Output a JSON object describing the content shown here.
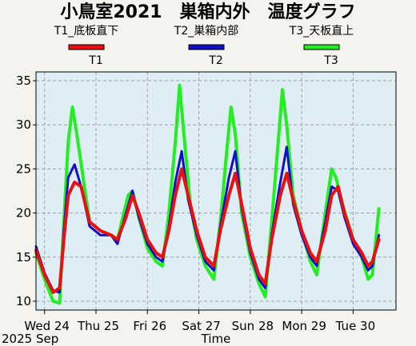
{
  "chart_data": {
    "type": "line",
    "title": "小鳥室2021　巣箱内外　温度グラフ",
    "xlabel": "Time",
    "x_origin_label": "2025 Sep",
    "ylabel": "",
    "ylim": [
      9,
      36
    ],
    "yticks": [
      10,
      15,
      20,
      25,
      30,
      35
    ],
    "grid": true,
    "legend_position": "top",
    "x_range_days": [
      "2025-09-23T20:00",
      "2025-09-30T20:00"
    ],
    "categories": [
      "Wed 24",
      "Thu 25",
      "Fri 26",
      "Sat 27",
      "Sun 28",
      "Mon 29",
      "Tue 30"
    ],
    "series": [
      {
        "name": "T1",
        "legend_label": "T1_底板直下",
        "color": "#e81010",
        "points": [
          [
            "09-23 20:00",
            15.8
          ],
          [
            "09-24 00:00",
            13.0
          ],
          [
            "09-24 04:00",
            11.0
          ],
          [
            "09-24 07:00",
            11.5
          ],
          [
            "09-24 09:00",
            17
          ],
          [
            "09-24 11:00",
            22
          ],
          [
            "09-24 14:00",
            23.5
          ],
          [
            "09-24 17:00",
            23
          ],
          [
            "09-24 21:00",
            19
          ],
          [
            "09-25 02:00",
            18
          ],
          [
            "09-25 07:00",
            17.5
          ],
          [
            "09-25 10:00",
            17
          ],
          [
            "09-25 14:00",
            19.5
          ],
          [
            "09-25 17:00",
            22
          ],
          [
            "09-25 20:00",
            20
          ],
          [
            "09-26 00:00",
            17
          ],
          [
            "09-26 04:00",
            15.5
          ],
          [
            "09-26 07:00",
            15
          ],
          [
            "09-26 10:00",
            18
          ],
          [
            "09-26 13:00",
            22
          ],
          [
            "09-26 16:00",
            25
          ],
          [
            "09-26 19:00",
            22
          ],
          [
            "09-26 23:00",
            18
          ],
          [
            "09-27 03:00",
            15
          ],
          [
            "09-27 07:00",
            14
          ],
          [
            "09-27 10:00",
            18
          ],
          [
            "09-27 14:00",
            22
          ],
          [
            "09-27 17:00",
            24.5
          ],
          [
            "09-27 20:00",
            21
          ],
          [
            "09-28 00:00",
            16
          ],
          [
            "09-28 04:00",
            13
          ],
          [
            "09-28 07:00",
            12
          ],
          [
            "09-28 10:00",
            17
          ],
          [
            "09-28 14:00",
            22
          ],
          [
            "09-28 17:00",
            24.5
          ],
          [
            "09-28 20:00",
            21.5
          ],
          [
            "09-29 00:00",
            18
          ],
          [
            "09-29 04:00",
            15.5
          ],
          [
            "09-29 07:00",
            14.5
          ],
          [
            "09-29 11:00",
            18
          ],
          [
            "09-29 14:00",
            22
          ],
          [
            "09-29 17:00",
            23
          ],
          [
            "09-29 20:00",
            20
          ],
          [
            "09-30 00:00",
            17
          ],
          [
            "09-30 04:00",
            15.5
          ],
          [
            "09-30 07:00",
            14
          ],
          [
            "09-30 09:00",
            14.5
          ],
          [
            "09-30 12:00",
            17
          ]
        ]
      },
      {
        "name": "T2",
        "legend_label": "T2_巣箱内部",
        "color": "#1010c8",
        "points": [
          [
            "09-23 20:00",
            16.2
          ],
          [
            "09-24 00:00",
            13.2
          ],
          [
            "09-24 04:00",
            11.2
          ],
          [
            "09-24 07:00",
            11.0
          ],
          [
            "09-24 09:00",
            18
          ],
          [
            "09-24 11:00",
            24
          ],
          [
            "09-24 14:00",
            25.5
          ],
          [
            "09-24 17:00",
            23
          ],
          [
            "09-24 21:00",
            18.5
          ],
          [
            "09-25 02:00",
            17.5
          ],
          [
            "09-25 07:00",
            17.5
          ],
          [
            "09-25 10:00",
            16.5
          ],
          [
            "09-25 14:00",
            20
          ],
          [
            "09-25 17:00",
            22.5
          ],
          [
            "09-25 20:00",
            19.5
          ],
          [
            "09-26 00:00",
            16.5
          ],
          [
            "09-26 04:00",
            15
          ],
          [
            "09-26 07:00",
            14.5
          ],
          [
            "09-26 10:00",
            18.5
          ],
          [
            "09-26 13:00",
            23.5
          ],
          [
            "09-26 16:00",
            27
          ],
          [
            "09-26 19:00",
            21.5
          ],
          [
            "09-26 23:00",
            17.5
          ],
          [
            "09-27 03:00",
            14.5
          ],
          [
            "09-27 07:00",
            13.5
          ],
          [
            "09-27 10:00",
            18.5
          ],
          [
            "09-27 14:00",
            24
          ],
          [
            "09-27 17:00",
            27
          ],
          [
            "09-27 20:00",
            20.5
          ],
          [
            "09-28 00:00",
            15.5
          ],
          [
            "09-28 04:00",
            12.5
          ],
          [
            "09-28 07:00",
            11.5
          ],
          [
            "09-28 10:00",
            17.5
          ],
          [
            "09-28 14:00",
            23.5
          ],
          [
            "09-28 17:00",
            27.5
          ],
          [
            "09-28 20:00",
            21
          ],
          [
            "09-29 00:00",
            17.5
          ],
          [
            "09-29 04:00",
            15
          ],
          [
            "09-29 07:00",
            14
          ],
          [
            "09-29 11:00",
            19
          ],
          [
            "09-29 14:00",
            23
          ],
          [
            "09-29 17:00",
            22.5
          ],
          [
            "09-29 20:00",
            19.5
          ],
          [
            "09-30 00:00",
            16.5
          ],
          [
            "09-30 04:00",
            15
          ],
          [
            "09-30 07:00",
            13.5
          ],
          [
            "09-30 09:00",
            14
          ],
          [
            "09-30 12:00",
            17.5
          ]
        ]
      },
      {
        "name": "T3",
        "legend_label": "T3_天板直上",
        "color": "#22ee22",
        "points": [
          [
            "09-23 20:00",
            15.5
          ],
          [
            "09-24 00:00",
            12.5
          ],
          [
            "09-24 04:00",
            10.0
          ],
          [
            "09-24 07:00",
            9.8
          ],
          [
            "09-24 09:00",
            19
          ],
          [
            "09-24 11:00",
            28
          ],
          [
            "09-24 13:00",
            32
          ],
          [
            "09-24 15:00",
            29
          ],
          [
            "09-24 18:00",
            24
          ],
          [
            "09-24 21:00",
            19
          ],
          [
            "09-25 02:00",
            18
          ],
          [
            "09-25 07:00",
            17.5
          ],
          [
            "09-25 10:00",
            17
          ],
          [
            "09-25 13:00",
            20
          ],
          [
            "09-25 15:00",
            22
          ],
          [
            "09-25 17:00",
            22.5
          ],
          [
            "09-25 20:00",
            19.5
          ],
          [
            "09-26 00:00",
            16
          ],
          [
            "09-26 04:00",
            14.5
          ],
          [
            "09-26 07:00",
            14
          ],
          [
            "09-26 10:00",
            20
          ],
          [
            "09-26 13:00",
            28
          ],
          [
            "09-26 15:00",
            34.5
          ],
          [
            "09-26 17:00",
            29
          ],
          [
            "09-26 20:00",
            21
          ],
          [
            "09-26 23:00",
            17
          ],
          [
            "09-27 03:00",
            14
          ],
          [
            "09-27 07:00",
            12.5
          ],
          [
            "09-27 10:00",
            19
          ],
          [
            "09-27 13:00",
            27
          ],
          [
            "09-27 15:00",
            32
          ],
          [
            "09-27 17:00",
            29
          ],
          [
            "09-27 20:00",
            20
          ],
          [
            "09-28 00:00",
            15
          ],
          [
            "09-28 04:00",
            12
          ],
          [
            "09-28 07:00",
            10.5
          ],
          [
            "09-28 10:00",
            19
          ],
          [
            "09-28 13:00",
            28
          ],
          [
            "09-28 15:00",
            34
          ],
          [
            "09-28 17:00",
            30
          ],
          [
            "09-28 20:00",
            22
          ],
          [
            "09-29 00:00",
            18
          ],
          [
            "09-29 04:00",
            14.5
          ],
          [
            "09-29 07:00",
            13
          ],
          [
            "09-29 11:00",
            20
          ],
          [
            "09-29 14:00",
            25
          ],
          [
            "09-29 16:00",
            24
          ],
          [
            "09-29 19:00",
            21
          ],
          [
            "09-30 00:00",
            17
          ],
          [
            "09-30 04:00",
            15
          ],
          [
            "09-30 07:00",
            12.5
          ],
          [
            "09-30 09:00",
            13
          ],
          [
            "09-30 12:00",
            20.5
          ]
        ]
      }
    ]
  },
  "colors": {
    "page_bg": "#f4f3ee",
    "plot_bg": "#deeef4",
    "grid": "#a0a0a0",
    "axis": "#000000"
  }
}
